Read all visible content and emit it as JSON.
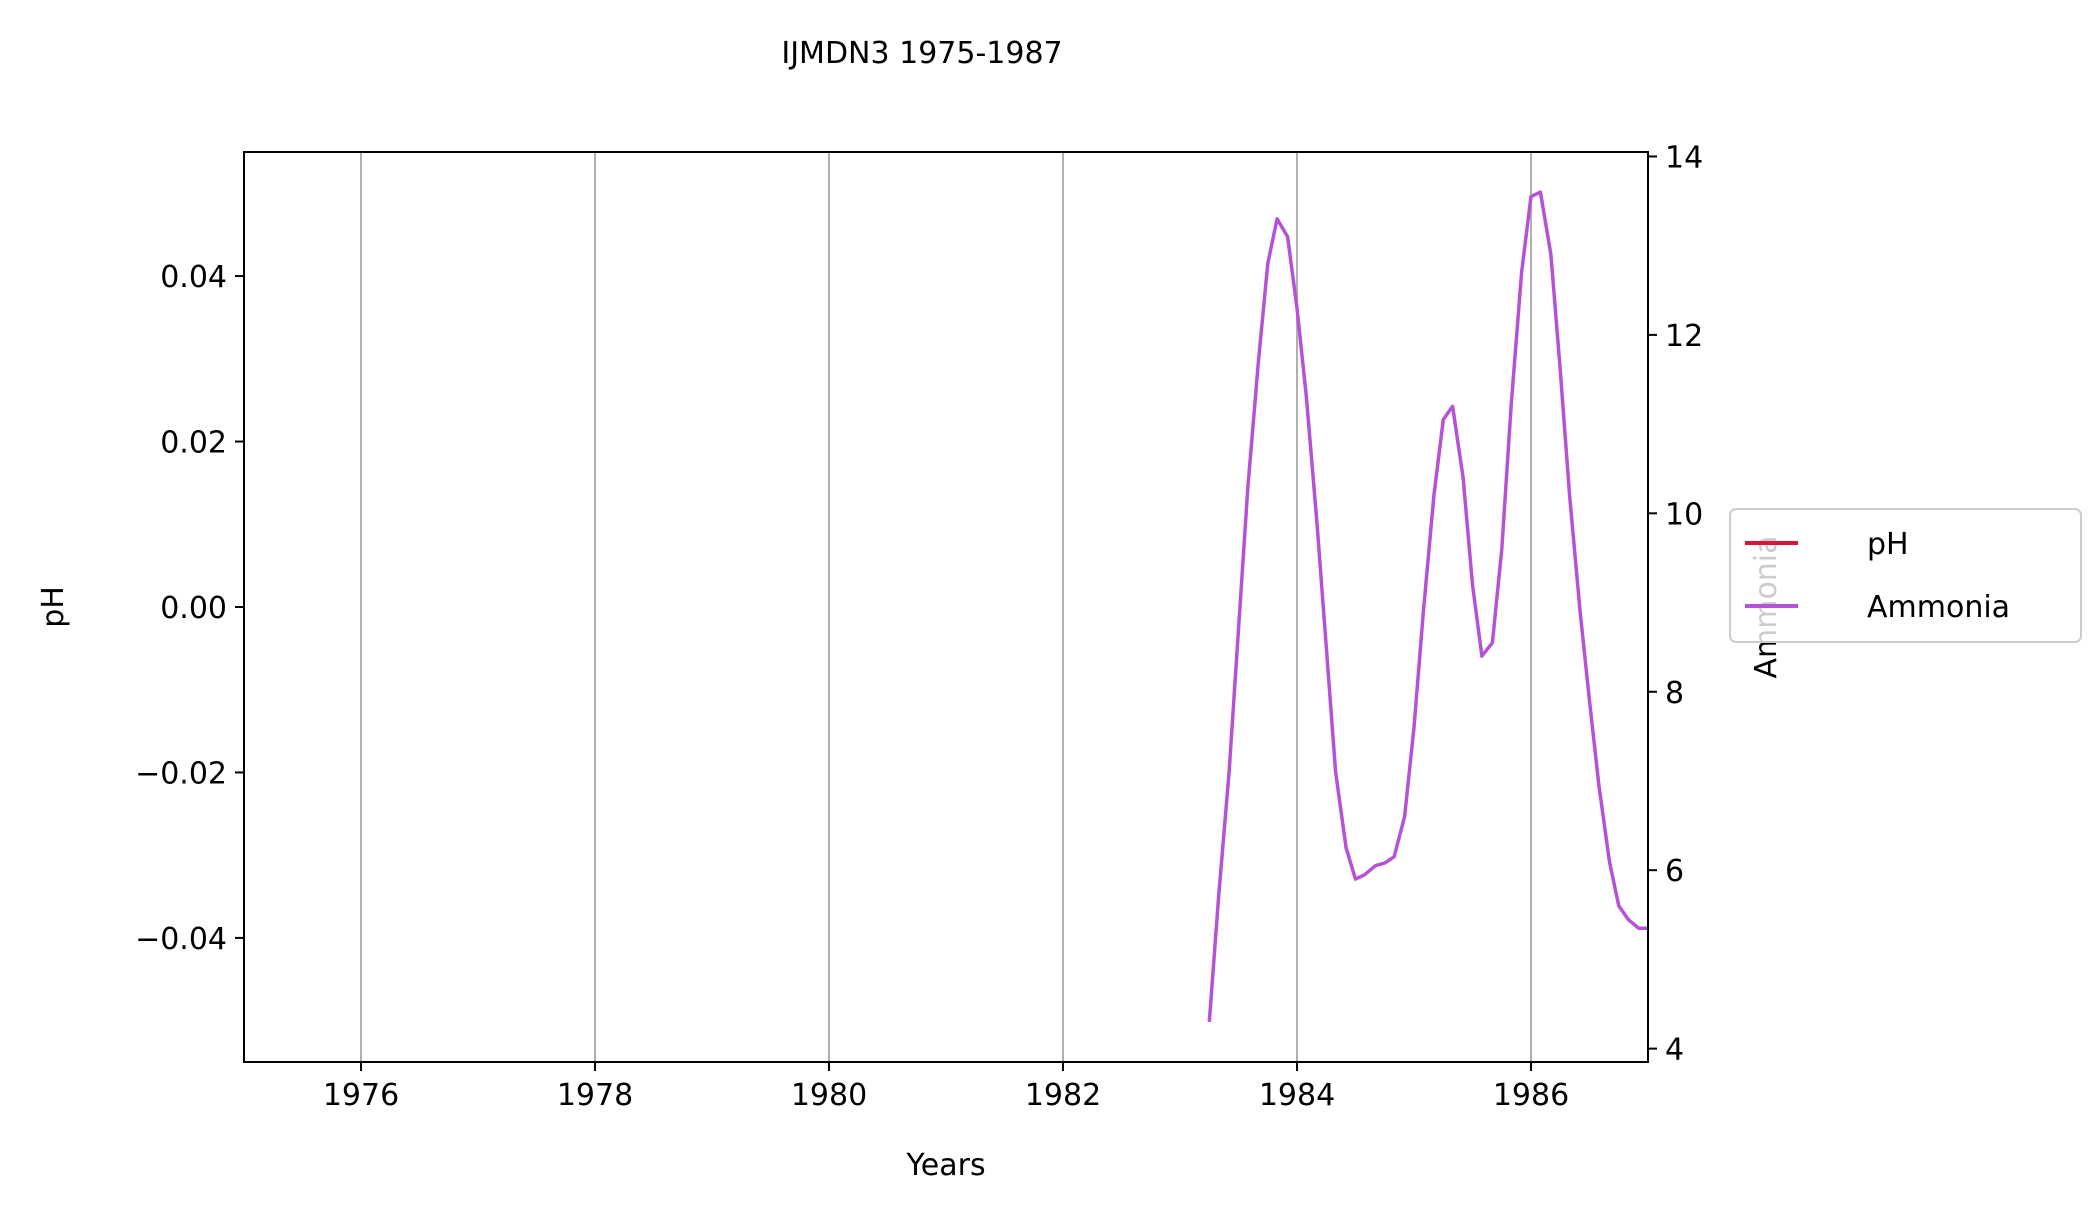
{
  "chart_data": {
    "type": "line",
    "title": "IJMDN3 1975-1987",
    "xlabel": "Years",
    "ylabel": "pH",
    "y2label": "Ammonia",
    "xlim": [
      1975.0,
      1987.0
    ],
    "ylim": [
      -0.055,
      0.055
    ],
    "y2lim": [
      3.85,
      14.05
    ],
    "x_ticks": [
      1976,
      1978,
      1980,
      1982,
      1984,
      1986
    ],
    "x_tick_labels": [
      "1976",
      "1978",
      "1980",
      "1982",
      "1984",
      "1986"
    ],
    "y_ticks": [
      0.04,
      0.02,
      0.0,
      -0.02,
      -0.04
    ],
    "y_tick_labels": [
      "0.04",
      "0.02",
      "0.00",
      "−0.02",
      "−0.04"
    ],
    "y2_ticks": [
      14,
      12,
      10,
      8,
      6,
      4
    ],
    "y2_tick_labels": [
      "14",
      "12",
      "10",
      "8",
      "6",
      "4"
    ],
    "grid": "x-major",
    "legend_position": "right",
    "series": [
      {
        "name": "pH",
        "axis": "left",
        "color": "#dc143c",
        "points": []
      },
      {
        "name": "Ammonia",
        "axis": "right",
        "color": "#b553d8",
        "points": [
          [
            1983.25,
            4.3
          ],
          [
            1983.33,
            5.7
          ],
          [
            1983.42,
            7.1
          ],
          [
            1983.5,
            8.7
          ],
          [
            1983.58,
            10.3
          ],
          [
            1983.67,
            11.7
          ],
          [
            1983.75,
            12.8
          ],
          [
            1983.83,
            13.3
          ],
          [
            1983.92,
            13.1
          ],
          [
            1984.0,
            12.3
          ],
          [
            1984.08,
            11.3
          ],
          [
            1984.17,
            9.9
          ],
          [
            1984.25,
            8.5
          ],
          [
            1984.33,
            7.1
          ],
          [
            1984.42,
            6.25
          ],
          [
            1984.5,
            5.9
          ],
          [
            1984.58,
            5.95
          ],
          [
            1984.67,
            6.05
          ],
          [
            1984.75,
            6.08
          ],
          [
            1984.83,
            6.15
          ],
          [
            1984.92,
            6.6
          ],
          [
            1985.0,
            7.6
          ],
          [
            1985.08,
            8.9
          ],
          [
            1985.17,
            10.2
          ],
          [
            1985.25,
            11.05
          ],
          [
            1985.33,
            11.2
          ],
          [
            1985.42,
            10.4
          ],
          [
            1985.5,
            9.2
          ],
          [
            1985.58,
            8.4
          ],
          [
            1985.67,
            8.55
          ],
          [
            1985.75,
            9.6
          ],
          [
            1985.83,
            11.2
          ],
          [
            1985.92,
            12.7
          ],
          [
            1986.0,
            13.55
          ],
          [
            1986.08,
            13.6
          ],
          [
            1986.17,
            12.9
          ],
          [
            1986.25,
            11.6
          ],
          [
            1986.33,
            10.2
          ],
          [
            1986.42,
            8.9
          ],
          [
            1986.5,
            7.9
          ],
          [
            1986.58,
            6.95
          ],
          [
            1986.67,
            6.1
          ],
          [
            1986.75,
            5.6
          ],
          [
            1986.83,
            5.45
          ],
          [
            1986.92,
            5.35
          ],
          [
            1987.0,
            5.35
          ]
        ]
      }
    ]
  }
}
